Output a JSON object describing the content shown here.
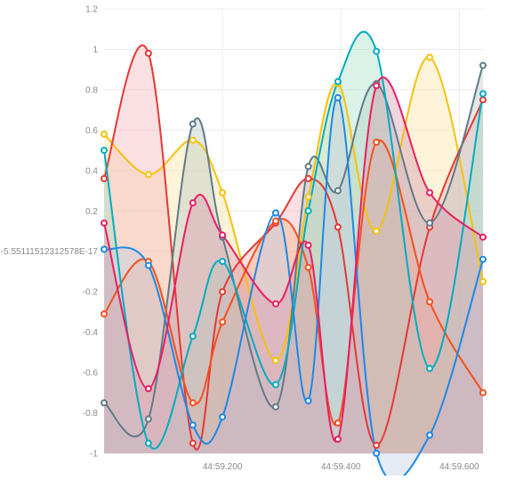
{
  "chart_data": {
    "type": "area",
    "grid": true,
    "legend": "none",
    "ylim": [
      -1,
      1.2
    ],
    "y_ticks": [
      {
        "value": 1.2,
        "label": "1.2"
      },
      {
        "value": 1,
        "label": "1"
      },
      {
        "value": 0.8,
        "label": "0.8"
      },
      {
        "value": 0.6,
        "label": "0.6"
      },
      {
        "value": 0.4,
        "label": "0.4"
      },
      {
        "value": 0.2,
        "label": "0.2"
      },
      {
        "value": 0,
        "label": "-5.55111512312578E-17"
      },
      {
        "value": -0.2,
        "label": "-0.2"
      },
      {
        "value": -0.4,
        "label": "-0.4"
      },
      {
        "value": -0.6,
        "label": "-0.6"
      },
      {
        "value": -0.8,
        "label": "-0.8"
      },
      {
        "value": -1,
        "label": "-1"
      }
    ],
    "xlim": [
      0,
      0.643
    ],
    "x_ticks": [
      {
        "value": 0.2,
        "label": "44:59.200"
      },
      {
        "value": 0.4,
        "label": "44:59.400"
      },
      {
        "value": 0.6,
        "label": "44:59.600"
      }
    ],
    "x": [
      0,
      0.075,
      0.15,
      0.2,
      0.29,
      0.345,
      0.395,
      0.46,
      0.55,
      0.64
    ],
    "series": [
      {
        "color": "#F4C20D",
        "fill": "#F7E3A1",
        "values": [
          0.58,
          0.38,
          0.55,
          0.29,
          -0.54,
          0.27,
          0.83,
          0.1,
          0.96,
          -0.15
        ]
      },
      {
        "color": "#E53935",
        "fill": "#F4B6BB",
        "values": [
          0.36,
          0.98,
          -0.95,
          -0.2,
          0.14,
          0.36,
          0.12,
          -0.96,
          0.12,
          0.75
        ]
      },
      {
        "color": "#5F7A8A",
        "fill": "#B9C9C3",
        "values": [
          -0.75,
          -0.83,
          0.63,
          0.07,
          -0.77,
          0.42,
          0.3,
          0.83,
          0.14,
          0.92
        ]
      },
      {
        "color": "#F4511E",
        "fill": "#F7B089",
        "values": [
          -0.31,
          -0.05,
          -0.75,
          -0.35,
          0.15,
          -0.08,
          -0.85,
          0.54,
          -0.25,
          -0.7
        ]
      },
      {
        "color": "#00ACC1",
        "fill": "#A8E0C9",
        "values": [
          0.5,
          -0.95,
          -0.42,
          -0.05,
          -0.66,
          0.2,
          0.84,
          0.99,
          -0.58,
          0.78
        ]
      },
      {
        "color": "#1E88E5",
        "fill": "#C2CCE8",
        "values": [
          0.01,
          -0.07,
          -0.86,
          -0.82,
          0.19,
          -0.74,
          0.76,
          -1.0,
          -0.91,
          -0.04
        ]
      },
      {
        "color": "#E91E63",
        "fill": "#D99BB0",
        "values": [
          0.14,
          -0.68,
          0.24,
          0.08,
          -0.26,
          0.03,
          -0.93,
          0.82,
          0.29,
          0.07
        ]
      }
    ]
  }
}
